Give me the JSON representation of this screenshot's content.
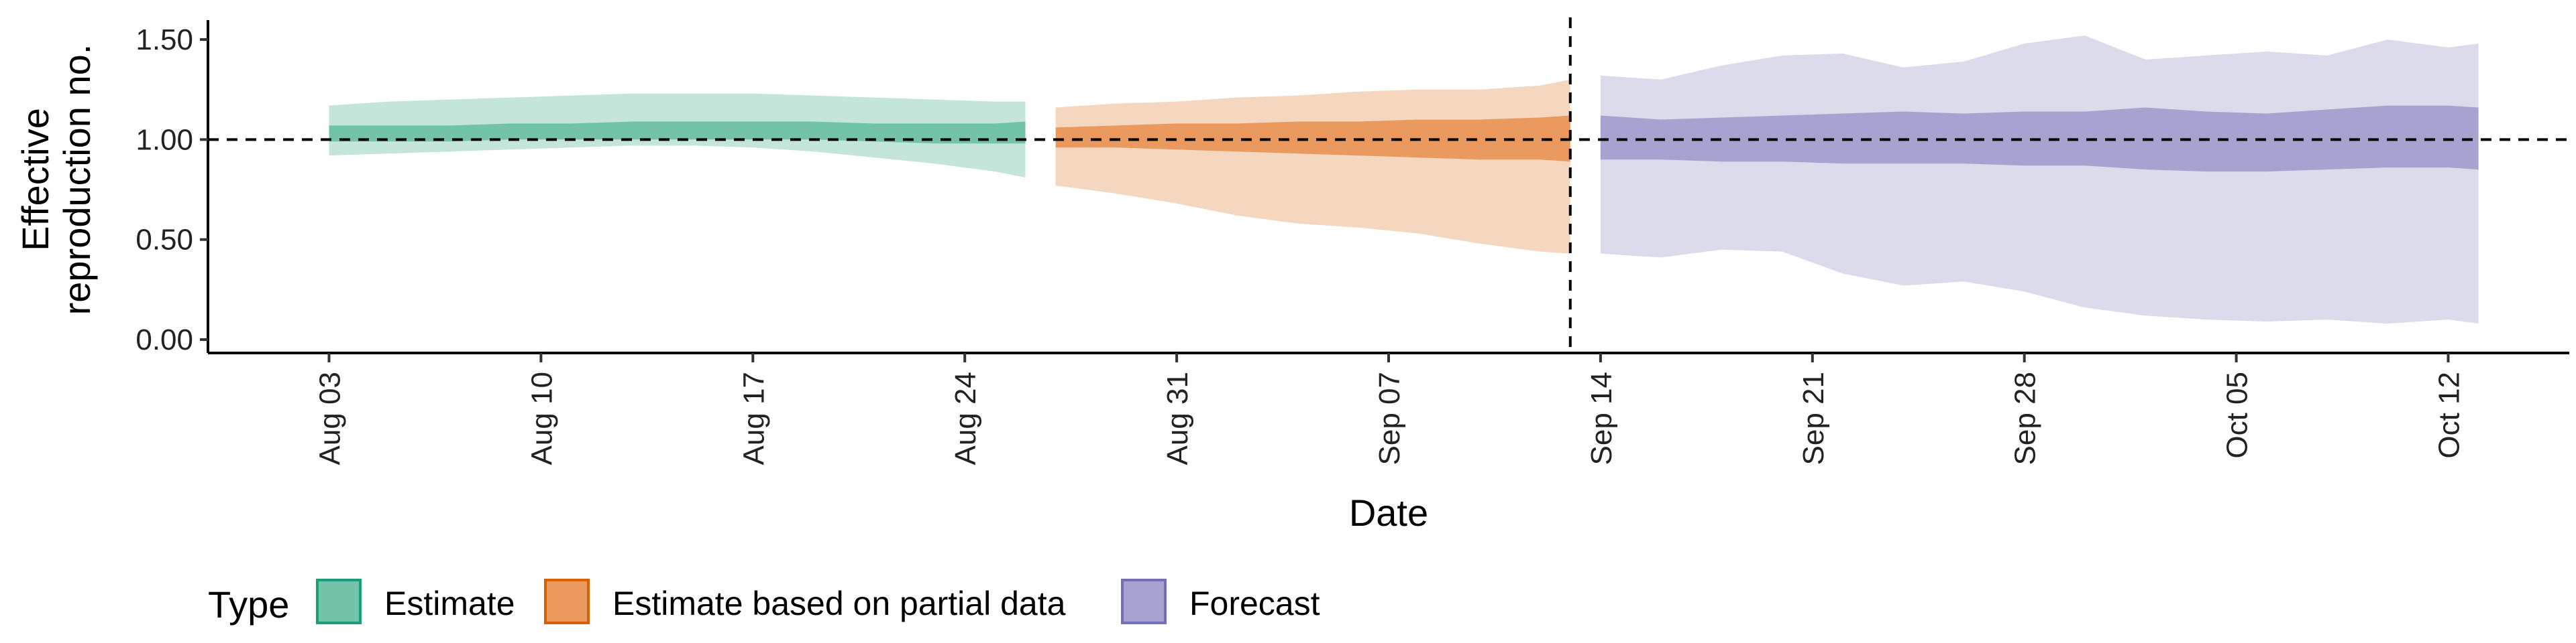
{
  "chart_data": {
    "type": "area",
    "xlabel": "Date",
    "ylabel_lines": [
      "Effective",
      "reproduction no."
    ],
    "x_ticks": [
      "Aug 03",
      "Aug 10",
      "Aug 17",
      "Aug 24",
      "Aug 31",
      "Sep 07",
      "Sep 14",
      "Sep 21",
      "Sep 28",
      "Oct 05",
      "Oct 12"
    ],
    "y_ticks": [
      "0.00",
      "0.50",
      "1.00",
      "1.50"
    ],
    "ylim": [
      0,
      1.6
    ],
    "x_range": [
      "2020-07-30",
      "2020-10-16"
    ],
    "reference_line_y": 1.0,
    "reference_line_x": "2020-09-13",
    "legend": {
      "title": "Type",
      "position": "bottom",
      "entries": [
        {
          "label": "Estimate",
          "fill": "#73c3a8",
          "stroke": "#1b9e77"
        },
        {
          "label": "Estimate based on partial data",
          "fill": "#eb9a5f",
          "stroke": "#d95f02"
        },
        {
          "label": "Forecast",
          "fill": "#a7a3d0",
          "stroke": "#7570b3"
        }
      ]
    },
    "series": [
      {
        "name": "Estimate",
        "outer_color": "#c4e6da",
        "inner_color": "#73c3a8",
        "dates": [
          "2020-08-03",
          "2020-08-05",
          "2020-08-07",
          "2020-08-09",
          "2020-08-11",
          "2020-08-13",
          "2020-08-15",
          "2020-08-17",
          "2020-08-19",
          "2020-08-21",
          "2020-08-23",
          "2020-08-25",
          "2020-08-26"
        ],
        "outer_upper": [
          1.17,
          1.19,
          1.2,
          1.21,
          1.22,
          1.23,
          1.23,
          1.23,
          1.22,
          1.21,
          1.2,
          1.19,
          1.19
        ],
        "outer_lower": [
          0.92,
          0.93,
          0.94,
          0.95,
          0.96,
          0.97,
          0.97,
          0.96,
          0.94,
          0.91,
          0.88,
          0.84,
          0.81
        ],
        "inner_upper": [
          1.07,
          1.07,
          1.07,
          1.08,
          1.08,
          1.09,
          1.09,
          1.09,
          1.09,
          1.08,
          1.08,
          1.08,
          1.09
        ],
        "inner_lower": [
          0.99,
          0.99,
          0.99,
          1.0,
          1.0,
          1.0,
          1.0,
          1.0,
          1.0,
          0.99,
          0.98,
          0.98,
          0.98
        ]
      },
      {
        "name": "Estimate based on partial data",
        "outer_color": "#f5d6bf",
        "inner_color": "#eb9a5f",
        "dates": [
          "2020-08-27",
          "2020-08-29",
          "2020-08-31",
          "2020-09-02",
          "2020-09-04",
          "2020-09-06",
          "2020-09-08",
          "2020-09-10",
          "2020-09-12",
          "2020-09-13"
        ],
        "outer_upper": [
          1.16,
          1.18,
          1.19,
          1.21,
          1.22,
          1.24,
          1.25,
          1.25,
          1.27,
          1.3
        ],
        "outer_lower": [
          0.77,
          0.73,
          0.68,
          0.62,
          0.58,
          0.56,
          0.53,
          0.48,
          0.44,
          0.43
        ],
        "inner_upper": [
          1.06,
          1.07,
          1.08,
          1.08,
          1.09,
          1.09,
          1.1,
          1.1,
          1.11,
          1.12
        ],
        "inner_lower": [
          0.96,
          0.96,
          0.95,
          0.94,
          0.93,
          0.92,
          0.91,
          0.9,
          0.9,
          0.89
        ]
      },
      {
        "name": "Forecast",
        "outer_color": "#dcdbec",
        "inner_color": "#a7a3d0",
        "dates": [
          "2020-09-14",
          "2020-09-16",
          "2020-09-18",
          "2020-09-20",
          "2020-09-22",
          "2020-09-24",
          "2020-09-26",
          "2020-09-28",
          "2020-09-30",
          "2020-10-02",
          "2020-10-04",
          "2020-10-06",
          "2020-10-08",
          "2020-10-10",
          "2020-10-12",
          "2020-10-13"
        ],
        "outer_upper": [
          1.32,
          1.3,
          1.37,
          1.42,
          1.43,
          1.36,
          1.39,
          1.48,
          1.52,
          1.4,
          1.42,
          1.44,
          1.42,
          1.5,
          1.46,
          1.48
        ],
        "outer_lower": [
          0.43,
          0.41,
          0.45,
          0.44,
          0.33,
          0.27,
          0.29,
          0.24,
          0.16,
          0.12,
          0.1,
          0.09,
          0.1,
          0.08,
          0.1,
          0.08
        ],
        "inner_upper": [
          1.12,
          1.1,
          1.11,
          1.12,
          1.13,
          1.14,
          1.13,
          1.14,
          1.14,
          1.16,
          1.14,
          1.13,
          1.15,
          1.17,
          1.17,
          1.16
        ],
        "inner_lower": [
          0.9,
          0.9,
          0.89,
          0.89,
          0.88,
          0.88,
          0.88,
          0.87,
          0.87,
          0.85,
          0.84,
          0.84,
          0.85,
          0.86,
          0.86,
          0.85
        ]
      }
    ]
  }
}
